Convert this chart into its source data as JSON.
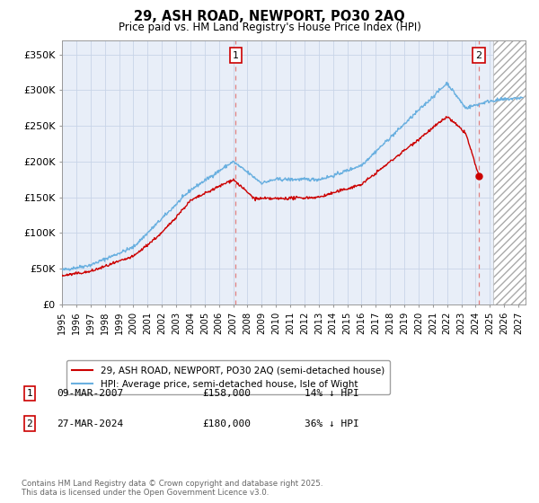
{
  "title": "29, ASH ROAD, NEWPORT, PO30 2AQ",
  "subtitle": "Price paid vs. HM Land Registry's House Price Index (HPI)",
  "ylabel_ticks": [
    "£0",
    "£50K",
    "£100K",
    "£150K",
    "£200K",
    "£250K",
    "£300K",
    "£350K"
  ],
  "ytick_vals": [
    0,
    50000,
    100000,
    150000,
    200000,
    250000,
    300000,
    350000
  ],
  "ylim": [
    0,
    370000
  ],
  "xlim_start": 1995.0,
  "xlim_end": 2027.5,
  "plot_bg_color": "#e8eef8",
  "hpi_color": "#6ab0e0",
  "price_color": "#cc0000",
  "marker1_x": 2007.18,
  "marker1_label": "1",
  "marker2_x": 2024.23,
  "marker2_y": 180000,
  "marker2_label": "2",
  "hatch_start": 2025.25,
  "legend_line1": "29, ASH ROAD, NEWPORT, PO30 2AQ (semi-detached house)",
  "legend_line2": "HPI: Average price, semi-detached house, Isle of Wight",
  "annotation1_date": "09-MAR-2007",
  "annotation1_price": "£158,000",
  "annotation1_hpi": "14% ↓ HPI",
  "annotation2_date": "27-MAR-2024",
  "annotation2_price": "£180,000",
  "annotation2_hpi": "36% ↓ HPI",
  "footnote": "Contains HM Land Registry data © Crown copyright and database right 2025.\nThis data is licensed under the Open Government Licence v3.0.",
  "background_color": "#ffffff",
  "grid_color": "#c8d4e8"
}
